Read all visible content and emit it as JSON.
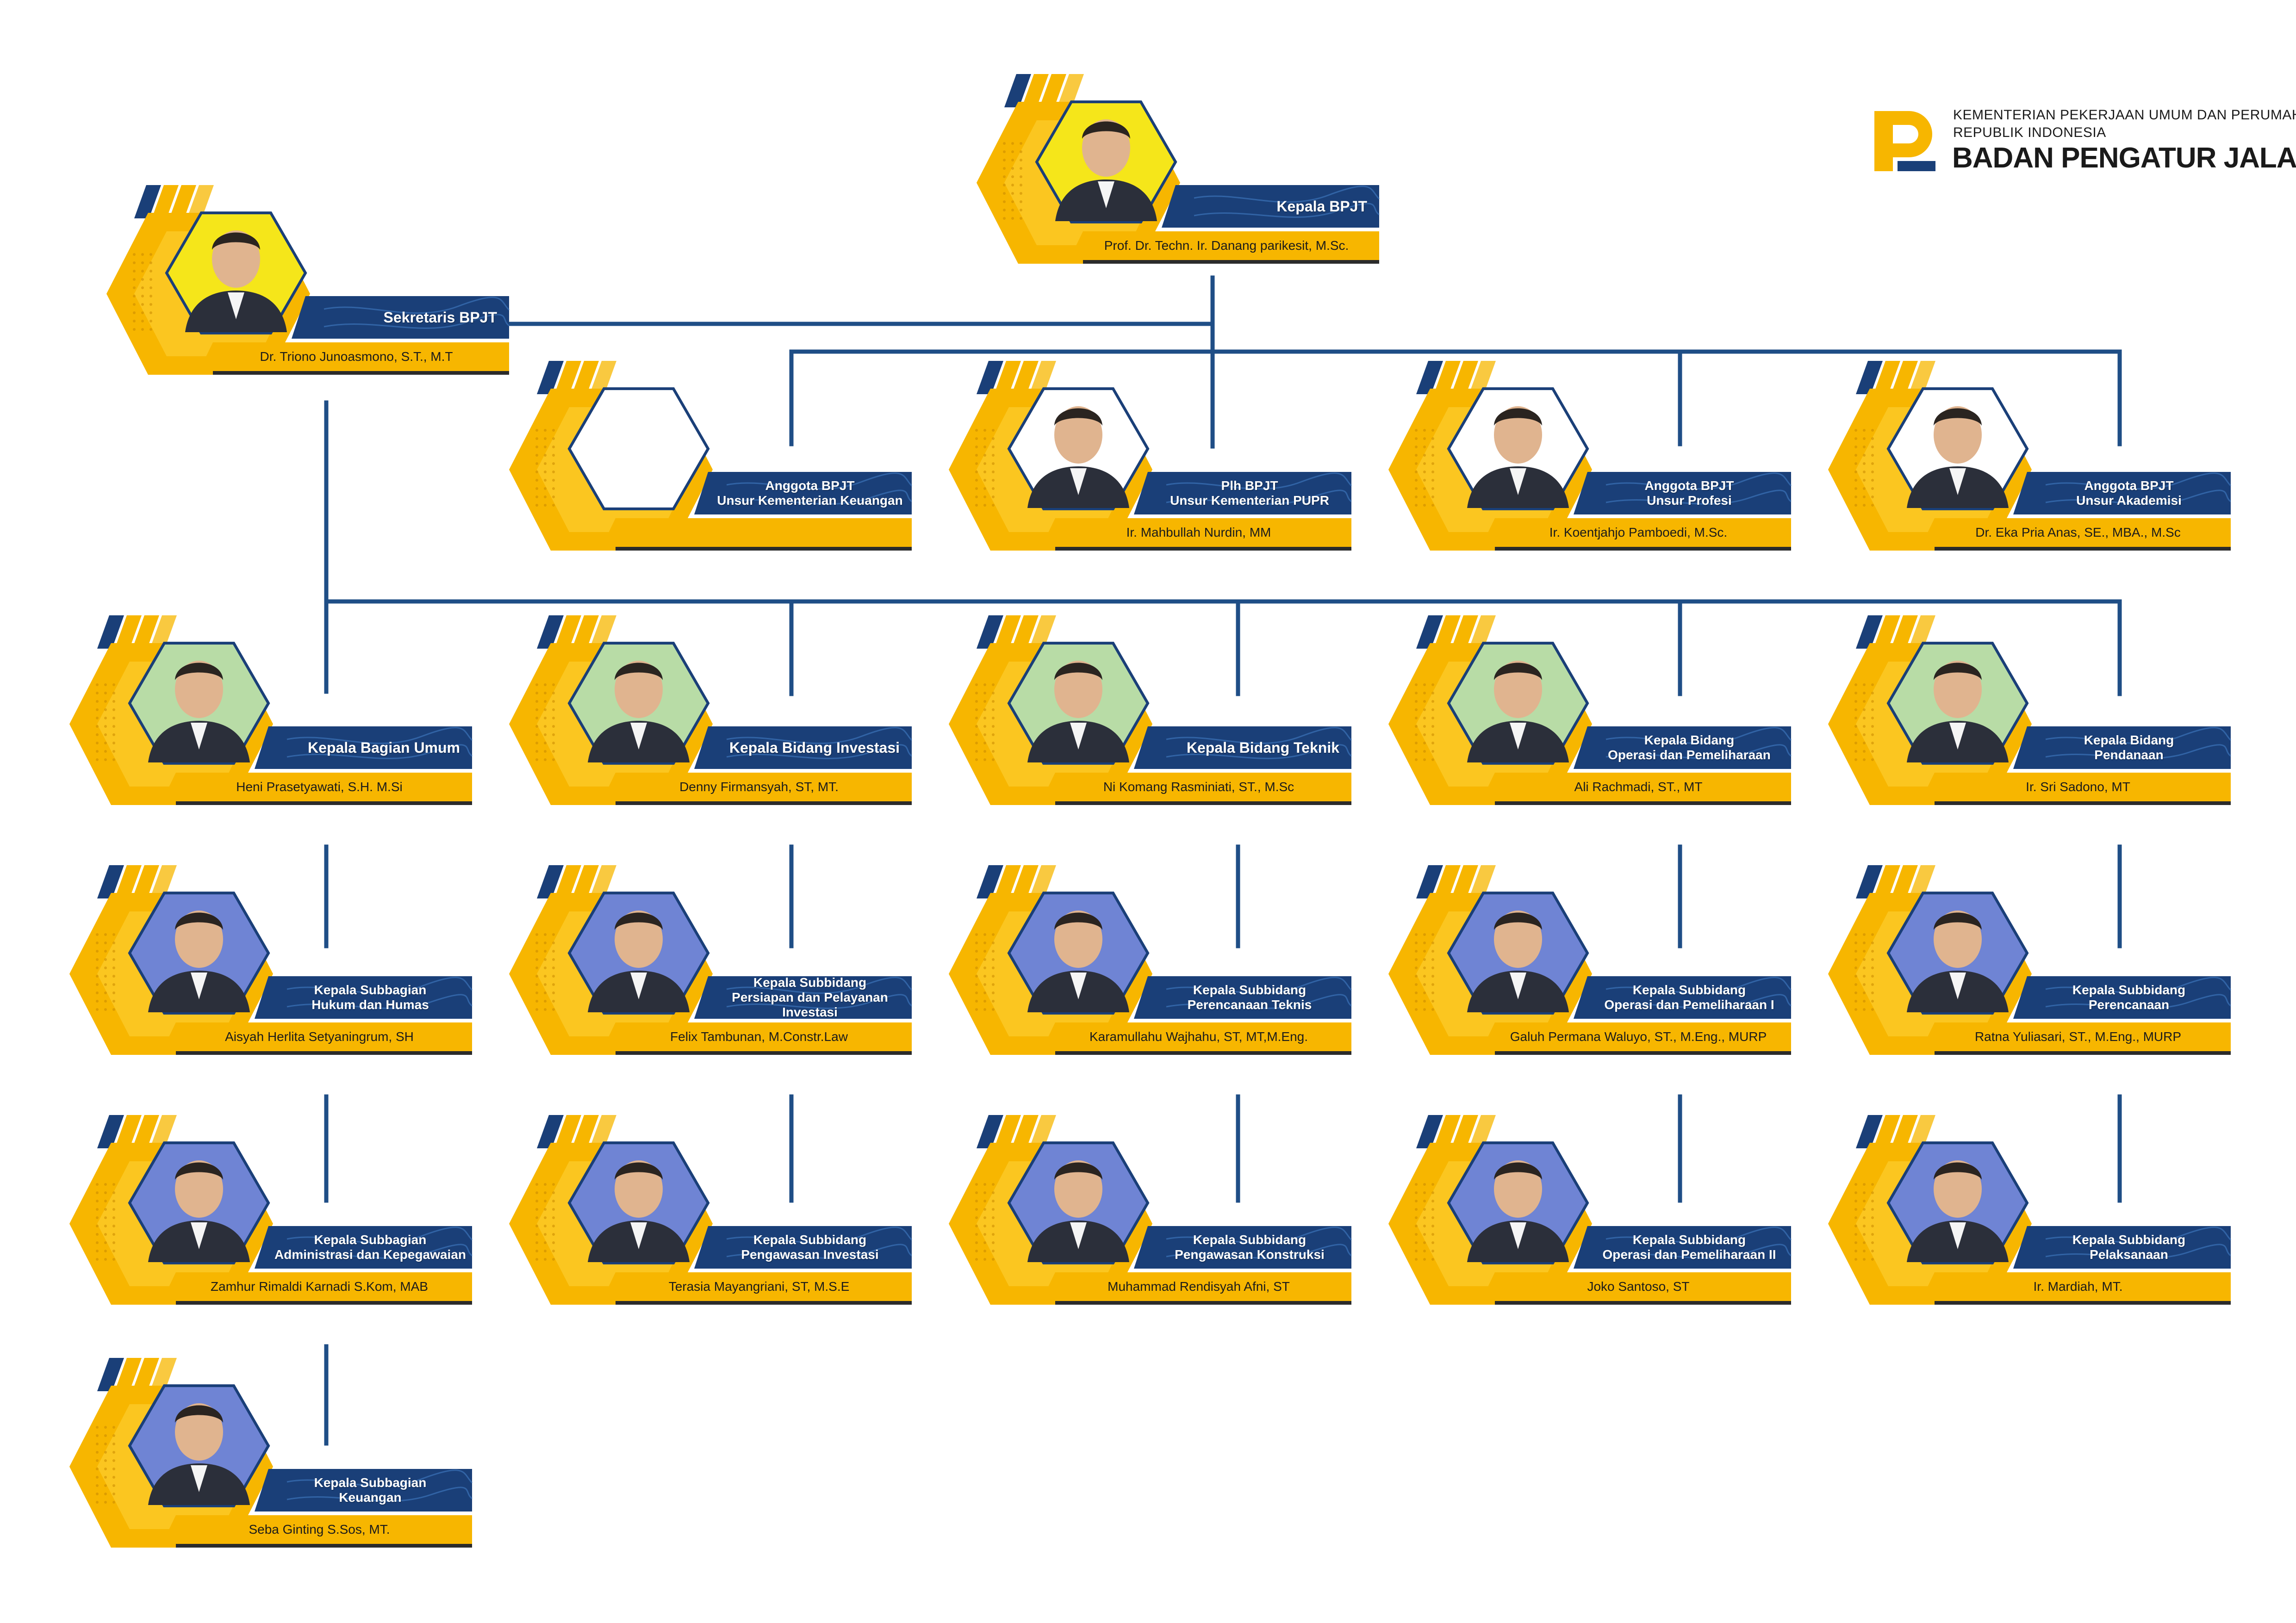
{
  "logo": {
    "line1": "KEMENTERIAN PEKERJAAN UMUM DAN PERUMAHAN RAKYAT",
    "line2": "REPUBLIK INDONESIA",
    "line3": "BADAN PENGATUR JALAN TOL",
    "color_primary": "#f7b600",
    "color_secondary": "#1a3f78"
  },
  "colors": {
    "navy": "#1a3f78",
    "gold": "#f7b600",
    "gold_light": "#ffd43b",
    "connector": "#1f4e86"
  },
  "nodes": [
    {
      "id": "kepala",
      "title": [
        "Kepala BPJT"
      ],
      "name": "Prof. Dr. Techn. Ir. Danang parikesit, M.Sc.",
      "photo_bg": "#f5e61a"
    },
    {
      "id": "sekretaris",
      "title": [
        "Sekretaris BPJT"
      ],
      "name": "Dr. Triono Junoasmono, S.T., M.T",
      "photo_bg": "#f5e61a"
    },
    {
      "id": "anggota-keuangan",
      "title": [
        "Anggota BPJT",
        "Unsur Kementerian Keuangan"
      ],
      "name": "",
      "photo_bg": "#ffffff"
    },
    {
      "id": "plh-pupr",
      "title": [
        "Plh BPJT",
        "Unsur Kementerian PUPR"
      ],
      "name": "Ir. Mahbullah Nurdin, MM",
      "photo_bg": "#ffffff"
    },
    {
      "id": "anggota-profesi",
      "title": [
        "Anggota BPJT",
        "Unsur Profesi"
      ],
      "name": "Ir. Koentjahjo Pamboedi, M.Sc.",
      "photo_bg": "#ffffff"
    },
    {
      "id": "anggota-akademisi",
      "title": [
        "Anggota BPJT",
        "Unsur Akademisi"
      ],
      "name": "Dr. Eka Pria Anas, SE., MBA., M.Sc",
      "photo_bg": "#ffffff"
    },
    {
      "id": "kabag-umum",
      "title": [
        "Kepala Bagian Umum"
      ],
      "name": "Heni Prasetyawati, S.H. M.Si",
      "photo_bg": "#b8dca6"
    },
    {
      "id": "kabid-investasi",
      "title": [
        "Kepala Bidang Investasi"
      ],
      "name": "Denny Firmansyah, ST,  MT.",
      "photo_bg": "#b8dca6"
    },
    {
      "id": "kabid-teknik",
      "title": [
        "Kepala Bidang Teknik"
      ],
      "name": "Ni Komang Rasminiati, ST., M.Sc",
      "photo_bg": "#b8dca6"
    },
    {
      "id": "kabid-op",
      "title": [
        "Kepala Bidang",
        "Operasi dan Pemeliharaan"
      ],
      "name": "Ali Rachmadi, ST., MT",
      "photo_bg": "#b8dca6"
    },
    {
      "id": "kabid-pendanaan",
      "title": [
        "Kepala Bidang",
        "Pendanaan"
      ],
      "name": "Ir. Sri Sadono, MT",
      "photo_bg": "#b8dca6"
    },
    {
      "id": "kasubag-hukum",
      "title": [
        "Kepala Subbagian",
        "Hukum dan Humas"
      ],
      "name": "Aisyah Herlita Setyaningrum, SH",
      "photo_bg": "#6f84d4"
    },
    {
      "id": "kasubid-persiapan",
      "title": [
        "Kepala Subbidang",
        "Persiapan dan Pelayanan Investasi"
      ],
      "name": "Felix Tambunan, M.Constr.Law",
      "photo_bg": "#6f84d4"
    },
    {
      "id": "kasubid-perencanaan-teknis",
      "title": [
        "Kepala Subbidang",
        "Perencanaan Teknis"
      ],
      "name": "Karamullahu Wajhahu, ST, MT,M.Eng.",
      "photo_bg": "#6f84d4"
    },
    {
      "id": "kasubid-op1",
      "title": [
        "Kepala Subbidang",
        "Operasi dan Pemeliharaan I"
      ],
      "name": "Galuh Permana Waluyo, ST., M.Eng., MURP",
      "photo_bg": "#6f84d4"
    },
    {
      "id": "kasubid-perencanaan",
      "title": [
        "Kepala Subbidang",
        "Perencanaan"
      ],
      "name": "Ratna Yuliasari, ST., M.Eng., MURP",
      "photo_bg": "#6f84d4"
    },
    {
      "id": "kasubag-admin",
      "title": [
        "Kepala Subbagian",
        "Administrasi dan Kepegawaian"
      ],
      "name": "Zamhur Rimaldi Karnadi S.Kom, MAB",
      "photo_bg": "#6f84d4"
    },
    {
      "id": "kasubid-pengawasan-inv",
      "title": [
        "Kepala Subbidang",
        "Pengawasan Investasi"
      ],
      "name": "Terasia Mayangriani, ST, M.S.E",
      "photo_bg": "#6f84d4"
    },
    {
      "id": "kasubid-pengawasan-kon",
      "title": [
        "Kepala Subbidang",
        "Pengawasan Konstruksi"
      ],
      "name": "Muhammad Rendisyah Afni, ST",
      "photo_bg": "#6f84d4"
    },
    {
      "id": "kasubid-op2",
      "title": [
        "Kepala Subbidang",
        "Operasi dan Pemeliharaan II"
      ],
      "name": "Joko Santoso, ST",
      "photo_bg": "#6f84d4"
    },
    {
      "id": "kasubid-pelaksanaan",
      "title": [
        "Kepala Subbidang",
        "Pelaksanaan"
      ],
      "name": "Ir. Mardiah, MT.",
      "photo_bg": "#6f84d4"
    },
    {
      "id": "kasubag-keuangan",
      "title": [
        "Kepala Subbagian",
        "Keuangan"
      ],
      "name": "Seba Ginting S.Sos, MT.",
      "photo_bg": "#6f84d4"
    }
  ]
}
